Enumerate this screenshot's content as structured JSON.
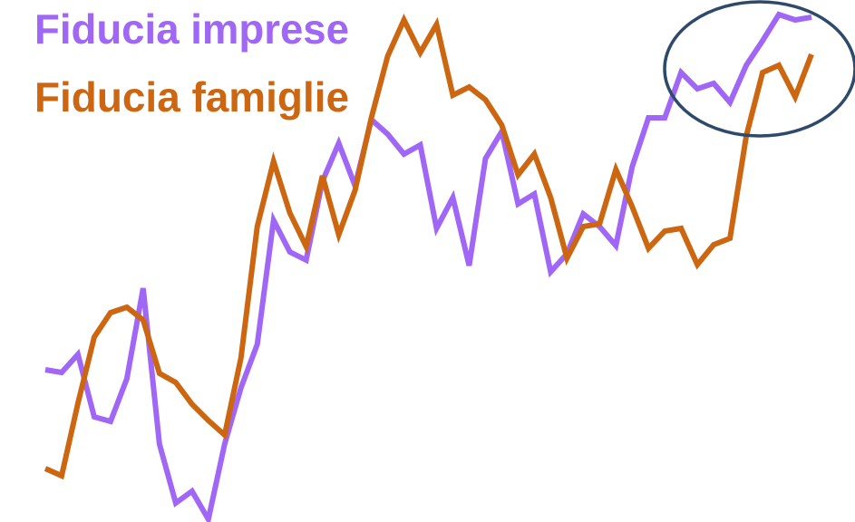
{
  "chart_data": {
    "type": "line",
    "series": [
      {
        "name": "Fiducia imprese",
        "color": "#a066f5",
        "values": [
          168,
          165,
          185,
          116,
          111,
          158,
          258,
          86,
          21,
          34,
          3,
          86,
          148,
          196,
          333,
          298,
          289,
          376,
          418,
          371,
          444,
          428,
          406,
          416,
          324,
          358,
          283,
          401,
          431,
          351,
          362,
          276,
          296,
          340,
          326,
          305,
          392,
          446,
          446,
          496,
          478,
          484,
          463,
          504,
          531,
          560,
          554,
          557
        ]
      },
      {
        "name": "Fiducia famiglie",
        "color": "#cc6611",
        "values": [
          59,
          51,
          131,
          204,
          231,
          237,
          223,
          164,
          154,
          130,
          112,
          96,
          181,
          326,
          398,
          341,
          304,
          382,
          317,
          366,
          446,
          514,
          554,
          518,
          549,
          471,
          480,
          466,
          438,
          383,
          406,
          358,
          291,
          326,
          329,
          389,
          348,
          302,
          321,
          324,
          284,
          306,
          313,
          426,
          496,
          504,
          469,
          516
        ]
      }
    ],
    "ylim": [
      0,
      576
    ]
  }
}
